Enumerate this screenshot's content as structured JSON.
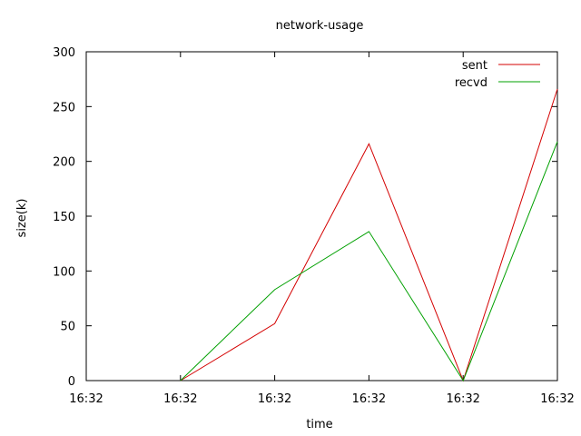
{
  "chart_data": {
    "type": "line",
    "title": "network-usage",
    "xlabel": "time",
    "ylabel": "size(k)",
    "x_tick_labels": [
      "16:32",
      "16:32",
      "16:32",
      "16:32",
      "16:32",
      "16:32"
    ],
    "x_index_range": [
      0,
      5
    ],
    "ylim": [
      0,
      300
    ],
    "y_ticks": [
      0,
      50,
      100,
      150,
      200,
      250,
      300
    ],
    "grid": false,
    "legend_position": "top-right",
    "series": [
      {
        "name": "sent",
        "color": "#d40000",
        "x": [
          1,
          2,
          3,
          4,
          5
        ],
        "values": [
          0,
          52,
          216,
          0,
          266
        ]
      },
      {
        "name": "recvd",
        "color": "#00a000",
        "x": [
          1,
          2,
          3,
          4,
          5
        ],
        "values": [
          0,
          83,
          136,
          0,
          218
        ]
      }
    ]
  }
}
